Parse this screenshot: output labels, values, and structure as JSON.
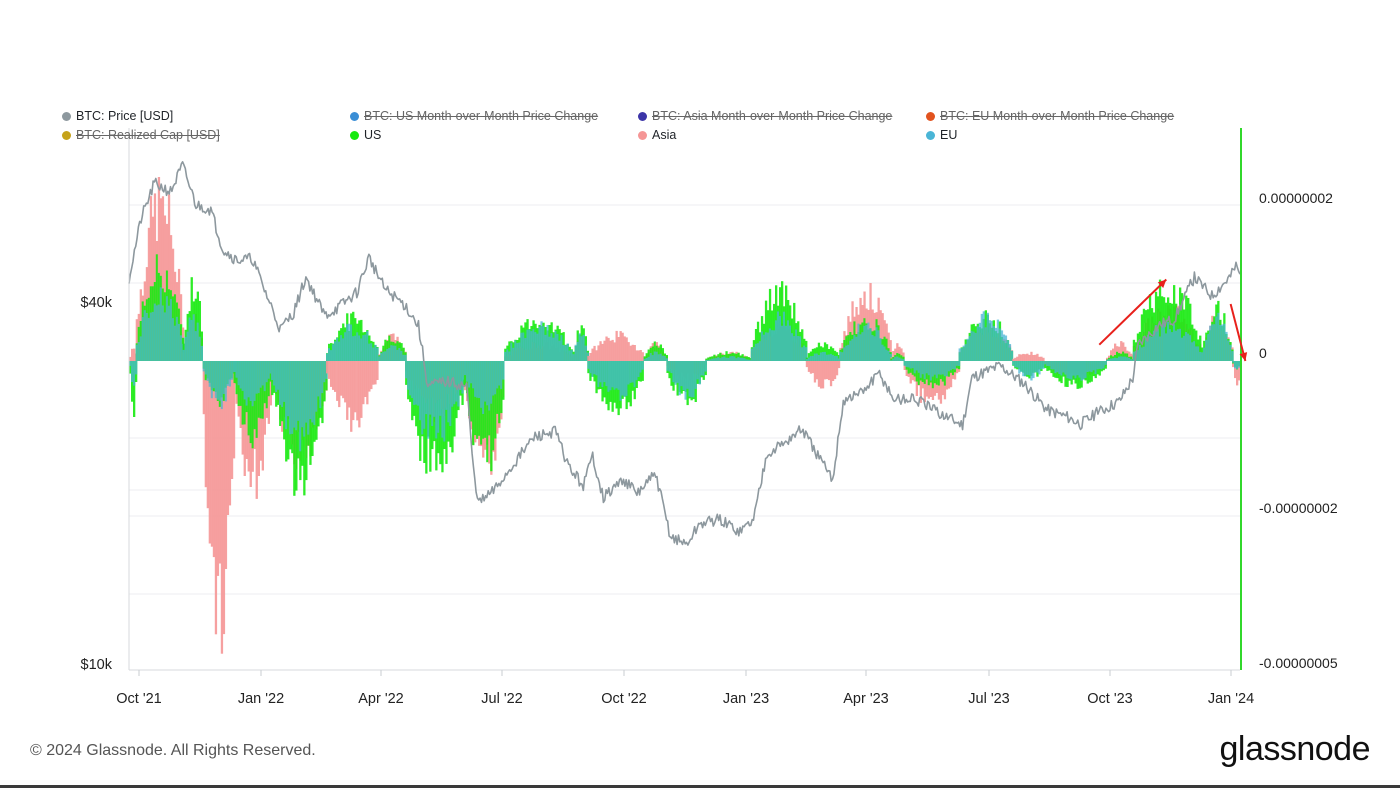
{
  "legend": [
    {
      "label": "BTC: Price [USD]",
      "color": "#8d989e",
      "enabled": true
    },
    {
      "label": "BTC: US Month-over-Month Price Change",
      "color": "#3a8ed6",
      "enabled": false
    },
    {
      "label": "BTC: Asia Month-over-Month Price Change",
      "color": "#3c35a8",
      "enabled": false
    },
    {
      "label": "BTC: EU Month-over-Month Price Change",
      "color": "#e2531f",
      "enabled": false
    },
    {
      "label": "BTC: Realized Cap [USD]",
      "color": "#c6a31a",
      "enabled": false
    },
    {
      "label": "US",
      "color": "#17ea0f",
      "enabled": true
    },
    {
      "label": "Asia",
      "color": "#f59696",
      "enabled": true
    },
    {
      "label": "EU",
      "color": "#4ab5d6",
      "enabled": true
    }
  ],
  "footer": {
    "copyright": "© 2024 Glassnode. All Rights Reserved.",
    "brand": "glassnode"
  },
  "chart_data": {
    "type": "bar",
    "x_axis": {
      "ticks": [
        "Oct '21",
        "Jan '22",
        "Apr '22",
        "Jul '22",
        "Oct '22",
        "Jan '23",
        "Apr '23",
        "Jul '23",
        "Oct '23",
        "Jan '24"
      ],
      "start": "2021-10-01",
      "end": "2024-01-08"
    },
    "y_left": {
      "scale": "log",
      "ticks": [
        "$40k",
        "$10k"
      ],
      "range": [
        10000,
        70000
      ]
    },
    "y_right": {
      "ticks": [
        "0.00000002",
        "0",
        "-0.00000002",
        "-0.00000005"
      ],
      "range": [
        -4e-08,
        3e-08
      ]
    },
    "price_series": {
      "name": "BTC: Price [USD]",
      "color": "#8d989e",
      "points": [
        [
          "2021-10-01",
          43800
        ],
        [
          "2021-10-10",
          55000
        ],
        [
          "2021-10-20",
          63000
        ],
        [
          "2021-11-01",
          61000
        ],
        [
          "2021-11-10",
          67500
        ],
        [
          "2021-11-20",
          58000
        ],
        [
          "2021-12-01",
          57000
        ],
        [
          "2021-12-10",
          49000
        ],
        [
          "2021-12-20",
          47000
        ],
        [
          "2022-01-01",
          47200
        ],
        [
          "2022-01-10",
          42000
        ],
        [
          "2022-01-22",
          36000
        ],
        [
          "2022-02-01",
          38500
        ],
        [
          "2022-02-10",
          44000
        ],
        [
          "2022-02-24",
          38000
        ],
        [
          "2022-03-05",
          39000
        ],
        [
          "2022-03-20",
          41500
        ],
        [
          "2022-03-29",
          47500
        ],
        [
          "2022-04-10",
          42000
        ],
        [
          "2022-04-25",
          39500
        ],
        [
          "2022-05-05",
          36500
        ],
        [
          "2022-05-12",
          29000
        ],
        [
          "2022-05-25",
          29500
        ],
        [
          "2022-06-10",
          29000
        ],
        [
          "2022-06-15",
          21000
        ],
        [
          "2022-06-19",
          18500
        ],
        [
          "2022-07-01",
          19500
        ],
        [
          "2022-07-15",
          21500
        ],
        [
          "2022-07-30",
          23800
        ],
        [
          "2022-08-15",
          24400
        ],
        [
          "2022-08-25",
          21300
        ],
        [
          "2022-09-05",
          19800
        ],
        [
          "2022-09-12",
          22200
        ],
        [
          "2022-09-20",
          18900
        ],
        [
          "2022-10-05",
          20300
        ],
        [
          "2022-10-15",
          19200
        ],
        [
          "2022-10-29",
          20700
        ],
        [
          "2022-11-09",
          16300
        ],
        [
          "2022-11-21",
          15800
        ],
        [
          "2022-12-01",
          17100
        ],
        [
          "2022-12-15",
          17400
        ],
        [
          "2022-12-31",
          16600
        ],
        [
          "2023-01-10",
          17400
        ],
        [
          "2023-01-20",
          22500
        ],
        [
          "2023-02-01",
          23200
        ],
        [
          "2023-02-15",
          24600
        ],
        [
          "2023-03-10",
          20200
        ],
        [
          "2023-03-18",
          27400
        ],
        [
          "2023-04-01",
          28300
        ],
        [
          "2023-04-14",
          30400
        ],
        [
          "2023-04-25",
          27500
        ],
        [
          "2023-05-10",
          27600
        ],
        [
          "2023-05-25",
          26400
        ],
        [
          "2023-06-15",
          25000
        ],
        [
          "2023-06-22",
          30000
        ],
        [
          "2023-07-13",
          31400
        ],
        [
          "2023-07-31",
          29300
        ],
        [
          "2023-08-17",
          26500
        ],
        [
          "2023-09-01",
          25800
        ],
        [
          "2023-09-11",
          25100
        ],
        [
          "2023-09-25",
          26300
        ],
        [
          "2023-10-10",
          27400
        ],
        [
          "2023-10-20",
          29900
        ],
        [
          "2023-10-24",
          34000
        ],
        [
          "2023-11-09",
          36700
        ],
        [
          "2023-11-20",
          37500
        ],
        [
          "2023-12-05",
          44000
        ],
        [
          "2023-12-18",
          41000
        ],
        [
          "2024-01-01",
          44200
        ],
        [
          "2024-01-05",
          46000
        ],
        [
          "2024-01-08",
          44500
        ]
      ]
    },
    "bar_series": [
      {
        "name": "US",
        "color": "#17ea0f"
      },
      {
        "name": "Asia",
        "color": "#f59696"
      },
      {
        "name": "EU",
        "color": "#4ab5d6"
      }
    ],
    "bar_segments": [
      {
        "start": "2021-10-01",
        "end": "2021-10-06",
        "us": -0.6,
        "asia": 0.2,
        "eu": -0.3
      },
      {
        "start": "2021-10-06",
        "end": "2021-11-10",
        "us": 1.1,
        "asia": 1.9,
        "eu": 0.8
      },
      {
        "start": "2021-11-10",
        "end": "2021-11-25",
        "us": 0.9,
        "asia": 0.5,
        "eu": 0.5
      },
      {
        "start": "2021-11-25",
        "end": "2021-12-18",
        "us": -0.5,
        "asia": -3.3,
        "eu": -0.5
      },
      {
        "start": "2021-12-18",
        "end": "2022-01-15",
        "us": -0.9,
        "asia": -1.4,
        "eu": -0.5
      },
      {
        "start": "2022-01-15",
        "end": "2022-02-25",
        "us": -1.4,
        "asia": -1.1,
        "eu": -0.9
      },
      {
        "start": "2022-02-25",
        "end": "2022-04-05",
        "us": 0.5,
        "asia": -0.7,
        "eu": 0.4
      },
      {
        "start": "2022-04-05",
        "end": "2022-04-25",
        "us": 0.3,
        "asia": 0.3,
        "eu": 0.2
      },
      {
        "start": "2022-04-25",
        "end": "2022-06-08",
        "us": -1.3,
        "asia": -0.6,
        "eu": -0.9
      },
      {
        "start": "2022-06-08",
        "end": "2022-07-08",
        "us": -1.2,
        "asia": -1.3,
        "eu": -0.6
      },
      {
        "start": "2022-07-08",
        "end": "2022-08-28",
        "us": 0.5,
        "asia": 0.2,
        "eu": 0.4
      },
      {
        "start": "2022-08-28",
        "end": "2022-09-08",
        "us": 0.4,
        "asia": 0.3,
        "eu": 0.3
      },
      {
        "start": "2022-09-08",
        "end": "2022-10-20",
        "us": -0.6,
        "asia": 0.3,
        "eu": -0.4
      },
      {
        "start": "2022-10-20",
        "end": "2022-11-06",
        "us": 0.2,
        "asia": 0.2,
        "eu": 0.1
      },
      {
        "start": "2022-11-06",
        "end": "2022-12-05",
        "us": -0.5,
        "asia": -0.2,
        "eu": -0.4
      },
      {
        "start": "2022-12-05",
        "end": "2023-01-08",
        "us": 0.1,
        "asia": 0.1,
        "eu": 0.05
      },
      {
        "start": "2023-01-08",
        "end": "2023-02-18",
        "us": 0.8,
        "asia": 0.4,
        "eu": 0.5
      },
      {
        "start": "2023-02-18",
        "end": "2023-03-15",
        "us": 0.2,
        "asia": -0.3,
        "eu": 0.1
      },
      {
        "start": "2023-03-15",
        "end": "2023-04-22",
        "us": 0.5,
        "asia": 0.8,
        "eu": 0.4
      },
      {
        "start": "2023-04-22",
        "end": "2023-05-02",
        "us": 0.1,
        "asia": 0.2,
        "eu": 0.05
      },
      {
        "start": "2023-05-02",
        "end": "2023-06-12",
        "us": -0.3,
        "asia": -0.5,
        "eu": -0.2
      },
      {
        "start": "2023-06-12",
        "end": "2023-07-22",
        "us": 0.5,
        "asia": 0.4,
        "eu": 0.5
      },
      {
        "start": "2023-07-22",
        "end": "2023-08-15",
        "us": -0.2,
        "asia": 0.1,
        "eu": -0.2
      },
      {
        "start": "2023-08-15",
        "end": "2023-09-30",
        "us": -0.3,
        "asia": -0.2,
        "eu": -0.2
      },
      {
        "start": "2023-09-30",
        "end": "2023-10-20",
        "us": 0.1,
        "asia": 0.2,
        "eu": 0.05
      },
      {
        "start": "2023-10-20",
        "end": "2023-12-10",
        "us": 0.9,
        "asia": 0.6,
        "eu": 0.4
      },
      {
        "start": "2023-12-10",
        "end": "2024-01-02",
        "us": 0.6,
        "asia": 0.5,
        "eu": 0.5
      },
      {
        "start": "2024-01-02",
        "end": "2024-01-08",
        "us": -0.1,
        "asia": -0.3,
        "eu": -0.1
      }
    ],
    "bar_units": "0.00000001",
    "annotations": [
      {
        "type": "arrow",
        "color": "#e8211c",
        "from": [
          "2023-09-25",
          0.2
        ],
        "to": [
          "2023-11-14",
          1.0
        ]
      },
      {
        "type": "arrow",
        "color": "#e8211c",
        "from": [
          "2024-01-01",
          0.7
        ],
        "to": [
          "2024-01-12",
          0.0
        ]
      }
    ]
  }
}
